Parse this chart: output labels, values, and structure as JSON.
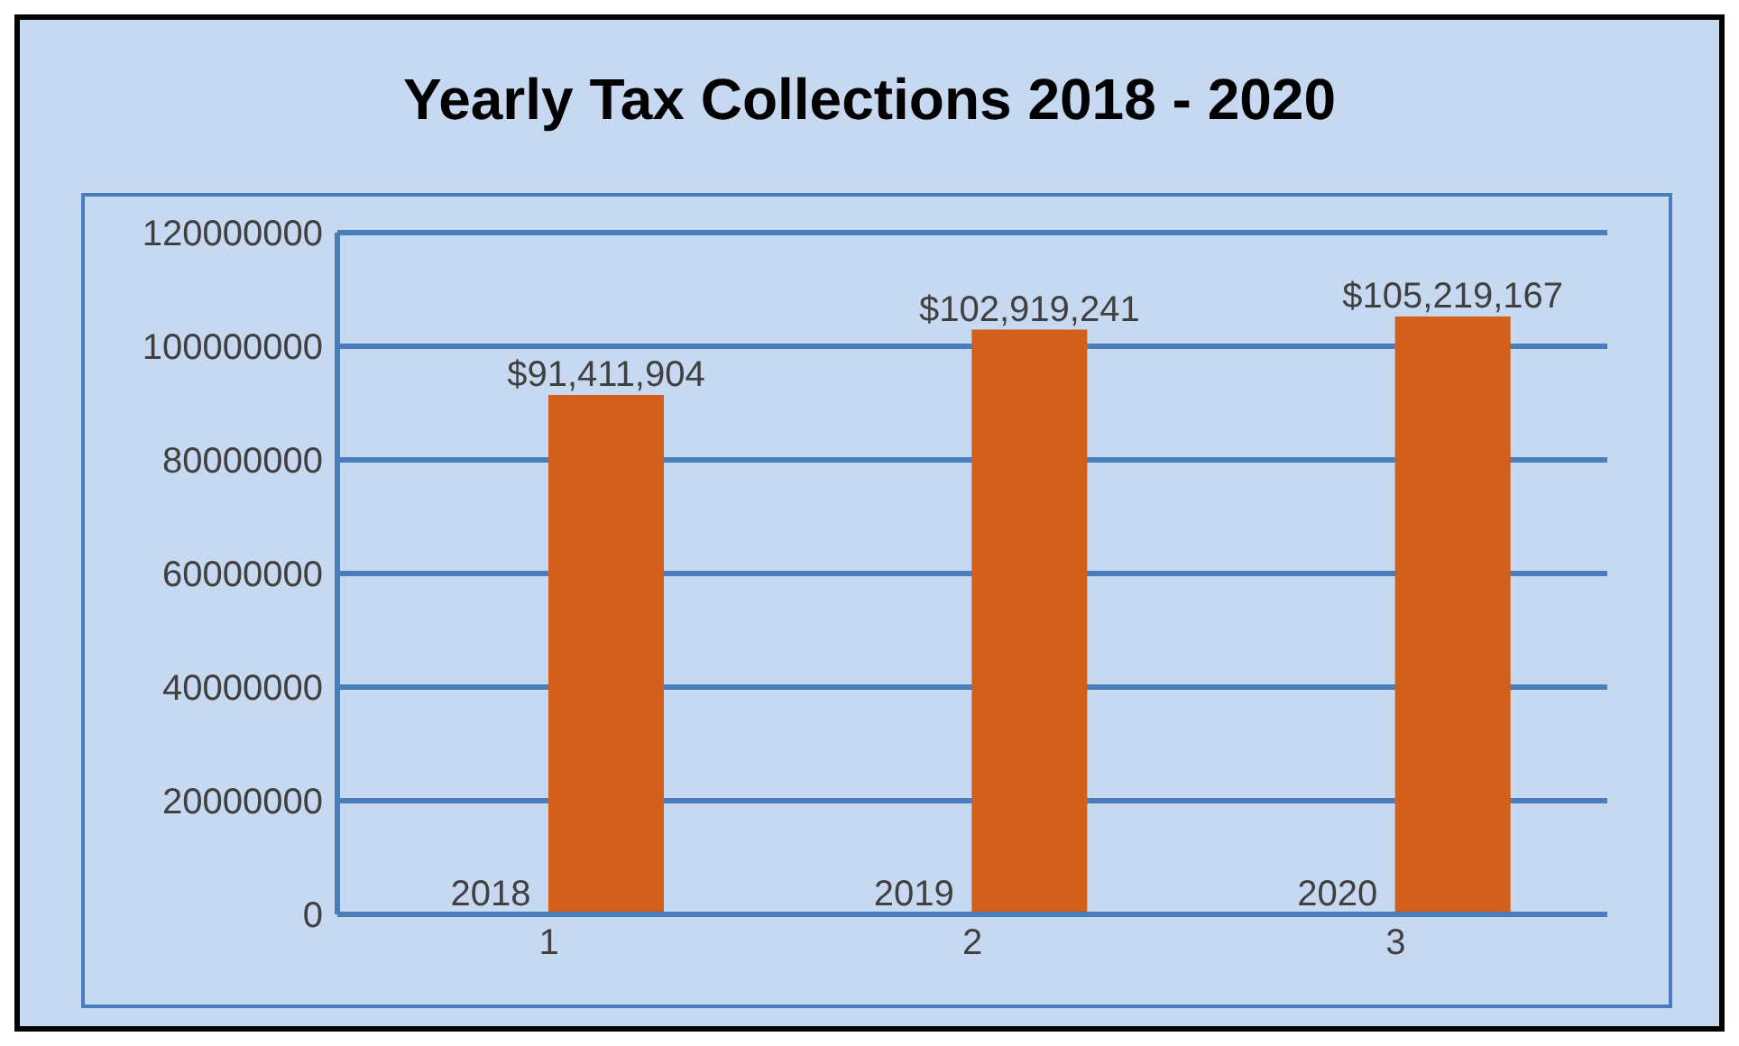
{
  "chart_data": {
    "type": "bar",
    "title": "Yearly Tax Collections 2018 - 2020",
    "categories": [
      "1",
      "2",
      "3"
    ],
    "series": [
      {
        "color": "#3b6496",
        "values": [
          2018,
          2019,
          2020
        ],
        "value_labels": [
          "2018",
          "2019",
          "2020"
        ]
      },
      {
        "color": "#d2601a",
        "values": [
          91411904,
          102919241,
          105219167
        ],
        "value_labels": [
          "$91,411,904",
          "$102,919,241",
          "$105,219,167"
        ]
      }
    ],
    "ylim": [
      0,
      120000000
    ],
    "yticks": [
      0,
      20000000,
      40000000,
      60000000,
      80000000,
      100000000,
      120000000
    ],
    "grid": "y"
  }
}
